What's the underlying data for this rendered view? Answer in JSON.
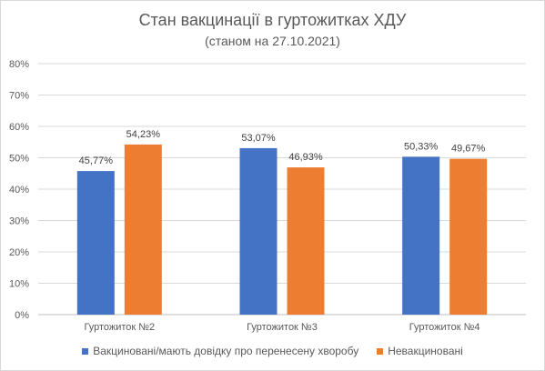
{
  "chart_data": {
    "type": "bar",
    "title": "Стан вакцинації в гуртожитках ХДУ",
    "subtitle": "(станом на 27.10.2021)",
    "categories": [
      "Гуртожиток №2",
      "Гуртожиток №3",
      "Гуртожиток №4"
    ],
    "series": [
      {
        "name": "Вакциновані/мають довідку про перенесену хворобу",
        "color": "#4472c4",
        "values": [
          45.77,
          53.07,
          50.33
        ],
        "labels": [
          "45,77%",
          "53,07%",
          "50,33%"
        ]
      },
      {
        "name": "Невакциновані",
        "color": "#ed7d31",
        "values": [
          54.23,
          46.93,
          49.67
        ],
        "labels": [
          "54,23%",
          "46,93%",
          "49,67%"
        ]
      }
    ],
    "ylim": [
      0,
      80
    ],
    "yticks": [
      0,
      10,
      20,
      30,
      40,
      50,
      60,
      70,
      80
    ],
    "ytick_labels": [
      "0%",
      "10%",
      "20%",
      "30%",
      "40%",
      "50%",
      "60%",
      "70%",
      "80%"
    ],
    "grid": true,
    "legend_position": "bottom"
  }
}
